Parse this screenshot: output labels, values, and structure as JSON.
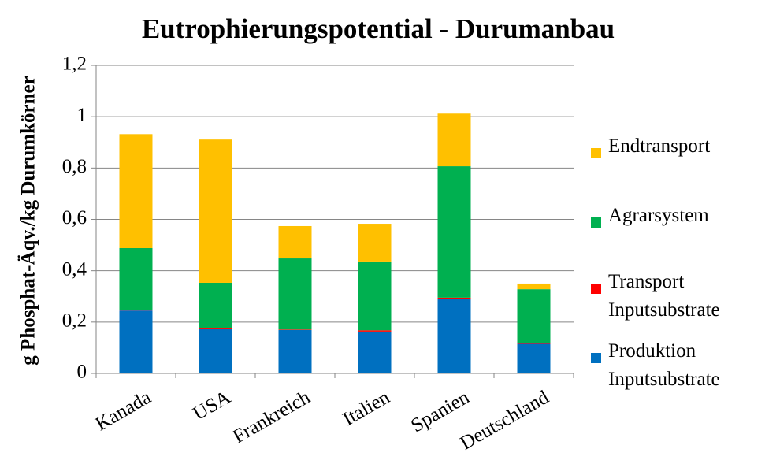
{
  "chart_data": {
    "type": "stacked_bar",
    "title": "Eutrophierungspotential - Durumanbau",
    "y_label": "g Phosphat-Äqv./kg  Durumkörner",
    "categories": [
      "Kanada",
      "USA",
      "Frankreich",
      "Italien",
      "Spanien",
      "Deutschland"
    ],
    "series": [
      {
        "name": "Produktion Inputsubstrate",
        "color": "#0070c0",
        "values": [
          0.245,
          0.172,
          0.169,
          0.163,
          0.29,
          0.115
        ]
      },
      {
        "name": "Transport Inputsubstrate",
        "color": "#ff0000",
        "values": [
          0.003,
          0.005,
          0.002,
          0.005,
          0.005,
          0.002
        ]
      },
      {
        "name": "Agrarsystem",
        "color": "#00b050",
        "values": [
          0.24,
          0.176,
          0.277,
          0.268,
          0.512,
          0.211
        ]
      },
      {
        "name": "Endtransport",
        "color": "#ffc000",
        "values": [
          0.444,
          0.558,
          0.126,
          0.147,
          0.205,
          0.022
        ]
      }
    ],
    "ylim": [
      0,
      1.2
    ],
    "yticks": [
      0,
      {
        "value": 0.2,
        "label": "0,2"
      },
      {
        "value": 0.4,
        "label": "0,4"
      },
      {
        "value": 0.6,
        "label": "0,6"
      },
      {
        "value": 0.8,
        "label": "0,8"
      },
      1,
      {
        "value": 1.2,
        "label": "1,2"
      }
    ],
    "grid": true,
    "legend": "right"
  }
}
